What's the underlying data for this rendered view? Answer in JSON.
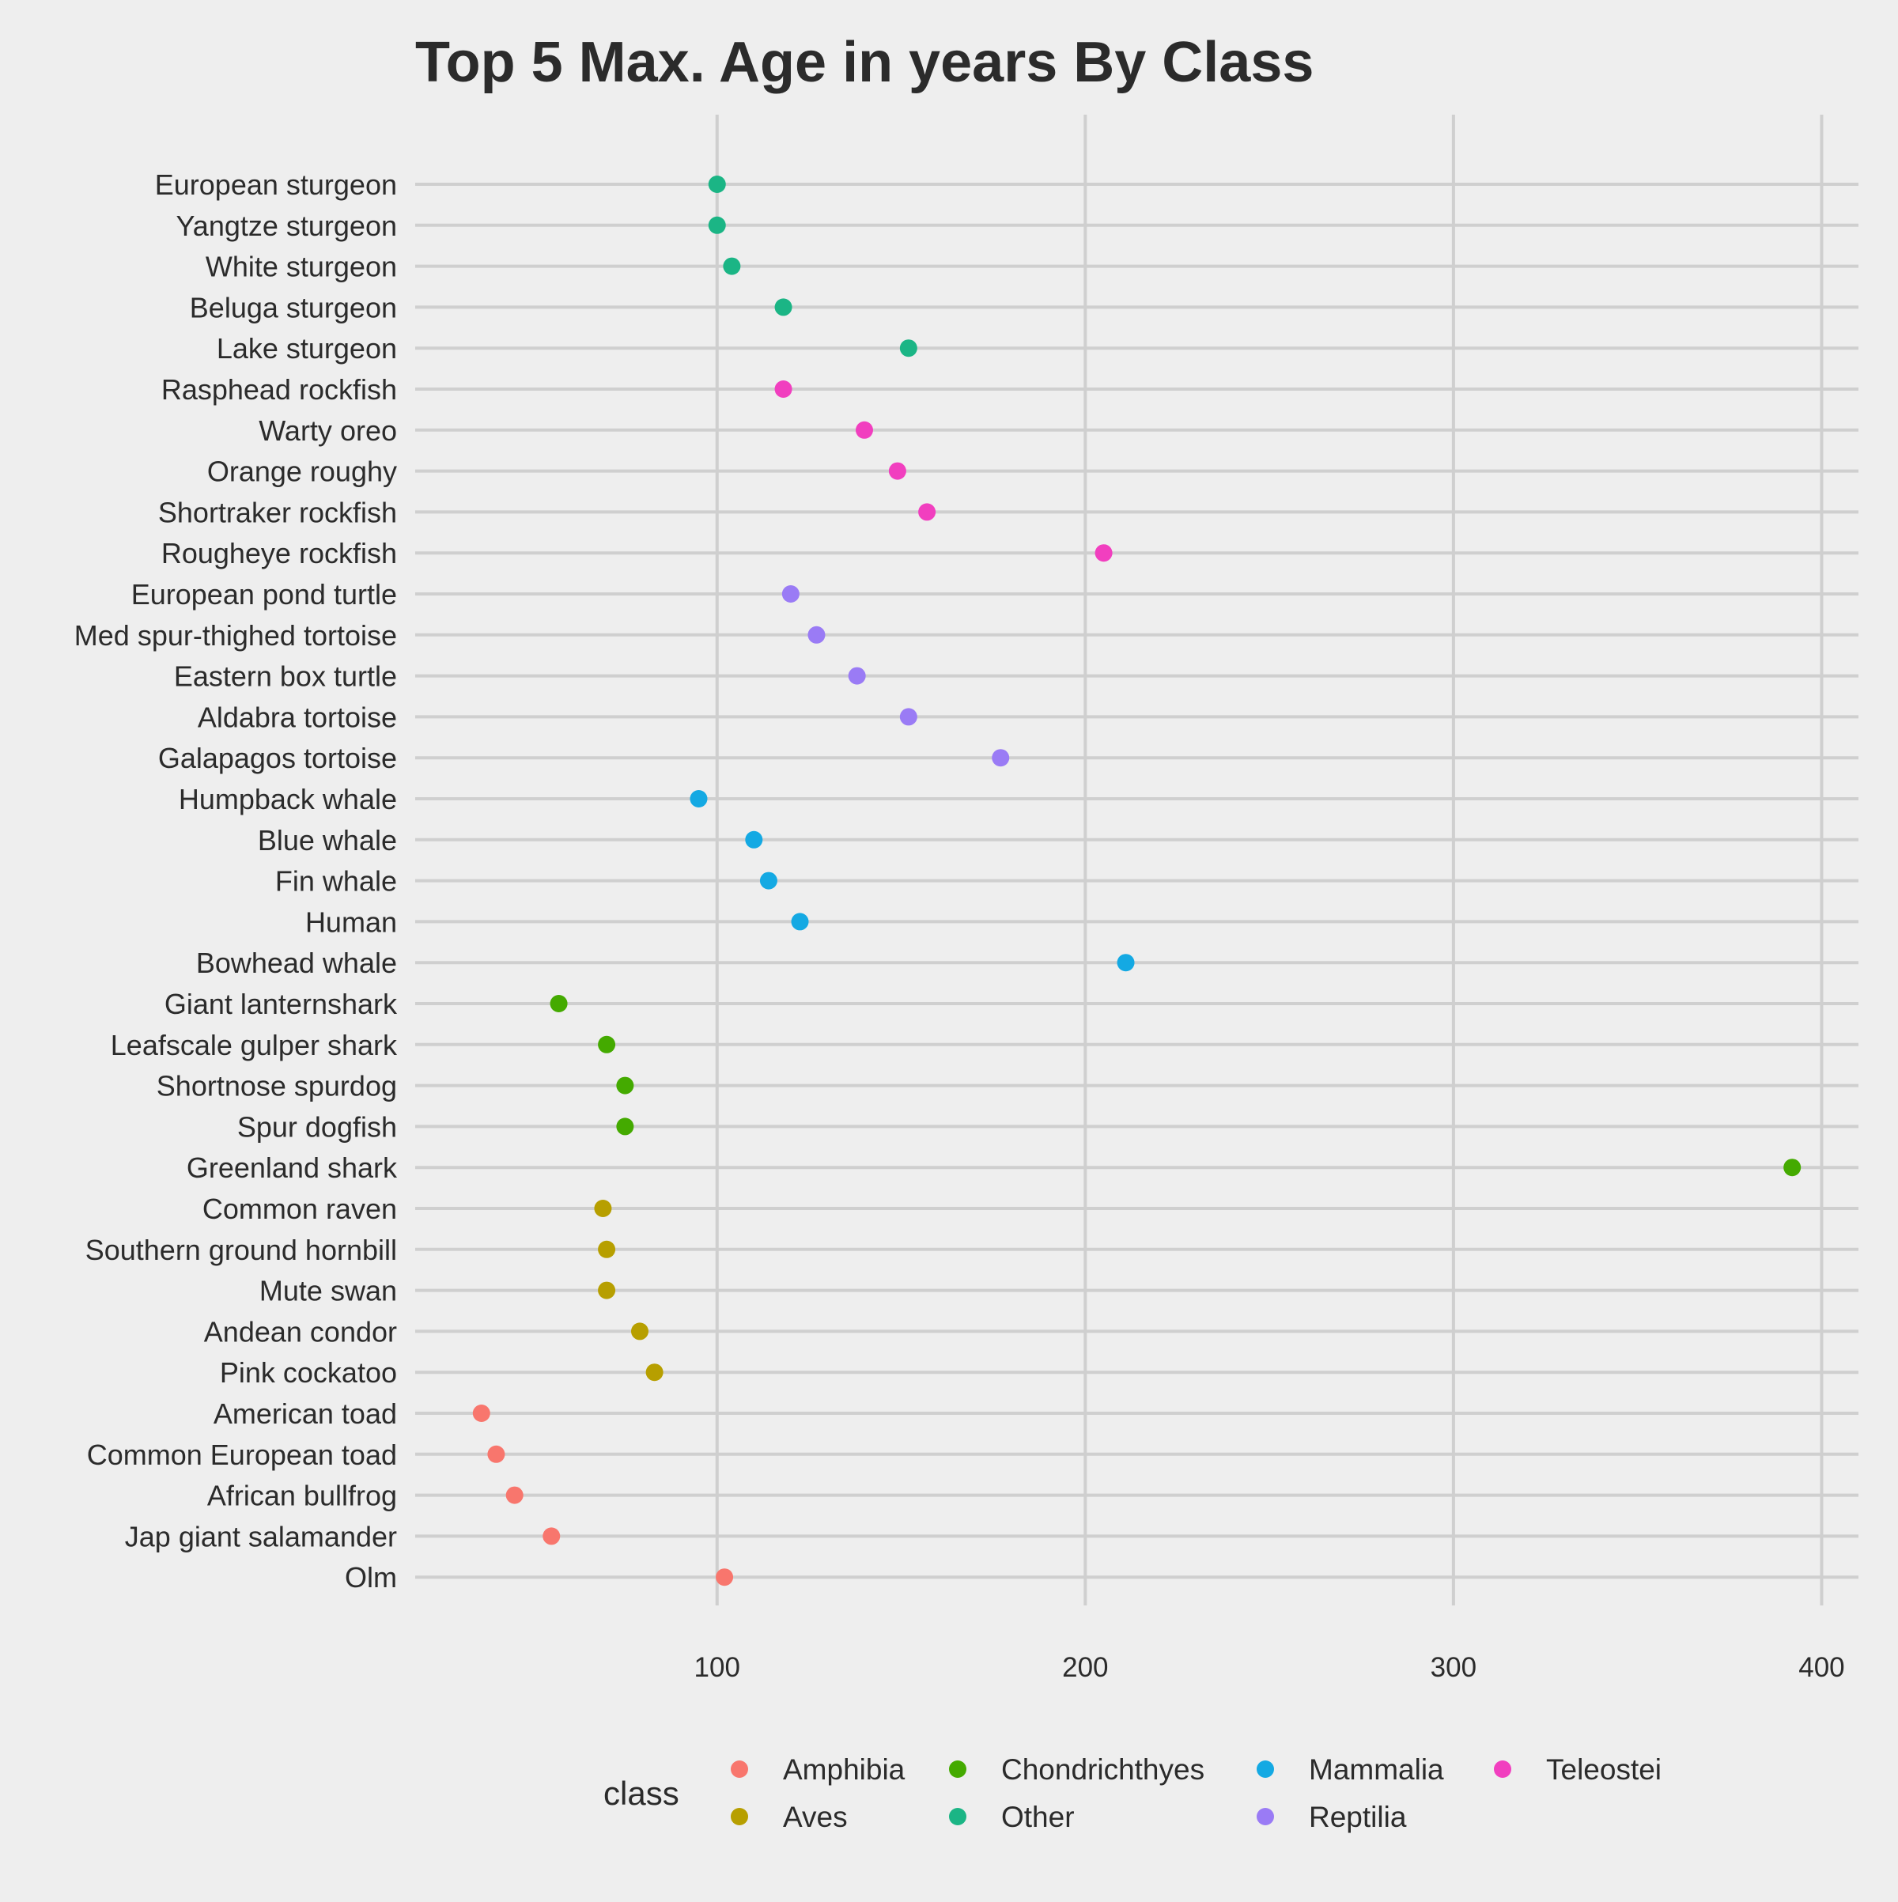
{
  "chart_data": {
    "type": "scatter",
    "title": "Top 5 Max. Age in years By Class",
    "xlabel": "",
    "ylabel": "",
    "xlim": [
      18,
      410
    ],
    "xticks": [
      100,
      200,
      300,
      400
    ],
    "grid": true,
    "legend_title": "class",
    "legend_placement": "bottom",
    "classes": [
      {
        "name": "Amphibia",
        "color": "#F8766D"
      },
      {
        "name": "Aves",
        "color": "#B79F00"
      },
      {
        "name": "Chondrichthyes",
        "color": "#44AA00"
      },
      {
        "name": "Other",
        "color": "#1BB585"
      },
      {
        "name": "Mammalia",
        "color": "#14A9E3"
      },
      {
        "name": "Reptilia",
        "color": "#9A7BF5"
      },
      {
        "name": "Teleostei",
        "color": "#F13FBF"
      }
    ],
    "points": [
      {
        "label": "European sturgeon",
        "value": 100,
        "class": "Other"
      },
      {
        "label": "Yangtze sturgeon",
        "value": 100,
        "class": "Other"
      },
      {
        "label": "White sturgeon",
        "value": 104,
        "class": "Other"
      },
      {
        "label": "Beluga sturgeon",
        "value": 118,
        "class": "Other"
      },
      {
        "label": "Lake sturgeon",
        "value": 152,
        "class": "Other"
      },
      {
        "label": "Rasphead rockfish",
        "value": 118,
        "class": "Teleostei"
      },
      {
        "label": "Warty oreo",
        "value": 140,
        "class": "Teleostei"
      },
      {
        "label": "Orange roughy",
        "value": 149,
        "class": "Teleostei"
      },
      {
        "label": "Shortraker rockfish",
        "value": 157,
        "class": "Teleostei"
      },
      {
        "label": "Rougheye rockfish",
        "value": 205,
        "class": "Teleostei"
      },
      {
        "label": "European pond turtle",
        "value": 120,
        "class": "Reptilia"
      },
      {
        "label": "Med spur-thighed tortoise",
        "value": 127,
        "class": "Reptilia"
      },
      {
        "label": "Eastern box turtle",
        "value": 138,
        "class": "Reptilia"
      },
      {
        "label": "Aldabra tortoise",
        "value": 152,
        "class": "Reptilia"
      },
      {
        "label": "Galapagos tortoise",
        "value": 177,
        "class": "Reptilia"
      },
      {
        "label": "Humpback whale",
        "value": 95,
        "class": "Mammalia"
      },
      {
        "label": "Blue whale",
        "value": 110,
        "class": "Mammalia"
      },
      {
        "label": "Fin whale",
        "value": 114,
        "class": "Mammalia"
      },
      {
        "label": "Human",
        "value": 122.5,
        "class": "Mammalia"
      },
      {
        "label": "Bowhead whale",
        "value": 211,
        "class": "Mammalia"
      },
      {
        "label": "Giant lanternshark",
        "value": 57,
        "class": "Chondrichthyes"
      },
      {
        "label": "Leafscale gulper shark",
        "value": 70,
        "class": "Chondrichthyes"
      },
      {
        "label": "Shortnose spurdog",
        "value": 75,
        "class": "Chondrichthyes"
      },
      {
        "label": "Spur dogfish",
        "value": 75,
        "class": "Chondrichthyes"
      },
      {
        "label": "Greenland shark",
        "value": 392,
        "class": "Chondrichthyes"
      },
      {
        "label": "Common raven",
        "value": 69,
        "class": "Aves"
      },
      {
        "label": "Southern ground hornbill",
        "value": 70,
        "class": "Aves"
      },
      {
        "label": "Mute swan",
        "value": 70,
        "class": "Aves"
      },
      {
        "label": "Andean condor",
        "value": 79,
        "class": "Aves"
      },
      {
        "label": "Pink cockatoo",
        "value": 83,
        "class": "Aves"
      },
      {
        "label": "American toad",
        "value": 36,
        "class": "Amphibia"
      },
      {
        "label": "Common European toad",
        "value": 40,
        "class": "Amphibia"
      },
      {
        "label": "African bullfrog",
        "value": 45,
        "class": "Amphibia"
      },
      {
        "label": "Jap giant salamander",
        "value": 55,
        "class": "Amphibia"
      },
      {
        "label": "Olm",
        "value": 102,
        "class": "Amphibia"
      }
    ]
  }
}
